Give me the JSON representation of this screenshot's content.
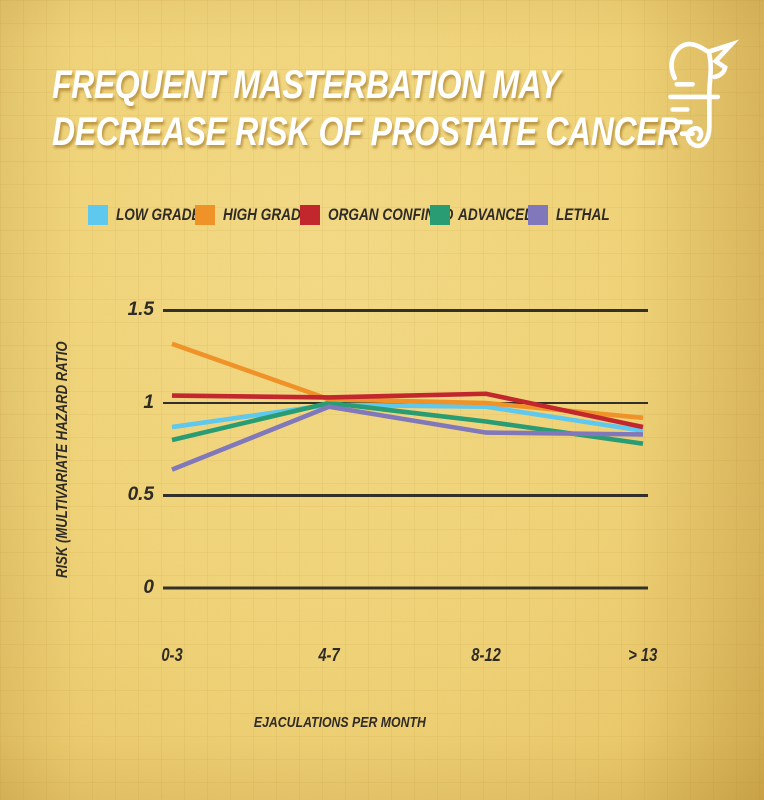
{
  "header": {
    "title_line1": "FREQUENT MASTERBATION MAY",
    "title_line2": "DECREASE RISK OF PROSTATE CANCER",
    "logo_icon": "seahorse-icon"
  },
  "colors": {
    "background": "#f1d478",
    "title_text": "#ffffff",
    "text_dark": "#2f2b26",
    "grid": "#33302a"
  },
  "chart_data": {
    "type": "line",
    "title": "FREQUENT MASTERBATION MAY DECREASE RISK OF PROSTATE CANCER",
    "xlabel": "EJACULATIONS PER MONTH",
    "ylabel": "RISK (MULTIVARIATE HAZARD RATIO",
    "categories": [
      "0-3",
      "4-7",
      "8-12",
      "> 13"
    ],
    "ylim": [
      0,
      1.5
    ],
    "grid": true,
    "legend_position": "top",
    "yticks": [
      {
        "value": 1.5,
        "label": "1.5"
      },
      {
        "value": 1,
        "label": "1",
        "thin": true
      },
      {
        "value": 0.5,
        "label": "0.5"
      },
      {
        "value": 0,
        "label": "0"
      }
    ],
    "series": [
      {
        "name": "LOW GRADE",
        "color": "#5ec8ee",
        "zorder": 1,
        "values": [
          0.87,
          0.99,
          0.98,
          0.85
        ]
      },
      {
        "name": "HIGH GRADE",
        "color": "#ef9329",
        "zorder": 3,
        "values": [
          1.32,
          1.02,
          1.0,
          0.92
        ]
      },
      {
        "name": "ORGAN CONFINED",
        "color": "#c1272d",
        "zorder": 5,
        "values": [
          1.04,
          1.03,
          1.05,
          0.87
        ]
      },
      {
        "name": "ADVANCED",
        "color": "#2a9c74",
        "zorder": 2,
        "values": [
          0.8,
          1.0,
          0.9,
          0.78
        ]
      },
      {
        "name": "LETHAL",
        "color": "#8078ba",
        "zorder": 4,
        "values": [
          0.64,
          0.98,
          0.84,
          0.83
        ]
      }
    ]
  }
}
